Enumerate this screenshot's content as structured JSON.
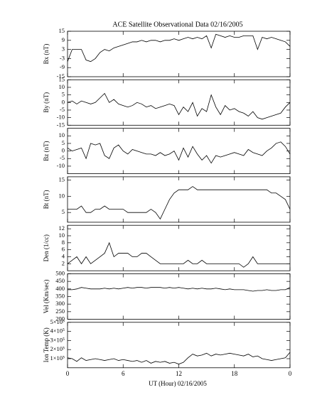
{
  "title": "ACE Satellite Observational Data   02/16/2005",
  "x_label": "UT (Hour)   02/16/2005",
  "chart_data": [
    {
      "type": "line",
      "y_label": "Bx (nT)",
      "xlim": [
        0,
        24
      ],
      "xticks": [
        0,
        6,
        12,
        18,
        {
          "value": 24,
          "label": "0"
        }
      ],
      "ylim": [
        -15,
        15
      ],
      "yticks": [
        -15,
        -9,
        -3,
        3,
        9,
        15
      ],
      "x": [
        0,
        0.5,
        1,
        1.5,
        2,
        2.5,
        3,
        3.5,
        4,
        4.5,
        5,
        5.5,
        6,
        6.5,
        7,
        7.5,
        8,
        8.5,
        9,
        9.5,
        10,
        10.5,
        11,
        11.5,
        12,
        12.5,
        13,
        13.5,
        14,
        14.5,
        15,
        15.5,
        16,
        16.5,
        17,
        17.5,
        18,
        18.5,
        19,
        19.5,
        20,
        20.5,
        21,
        21.5,
        22,
        22.5,
        23,
        23.5,
        24
      ],
      "values": [
        -5,
        3,
        3,
        3,
        -4,
        -5,
        -3,
        1,
        3,
        2,
        4,
        5,
        6,
        7,
        8,
        8,
        9,
        8,
        9,
        9,
        8,
        9,
        9,
        10,
        9,
        10,
        11,
        10,
        11,
        10,
        12,
        4,
        13,
        12,
        11,
        12,
        11,
        11,
        12,
        12,
        12,
        3,
        11,
        10,
        11,
        10,
        9,
        8,
        5
      ],
      "color": "#000000"
    },
    {
      "type": "line",
      "y_label": "By (nT)",
      "xlim": [
        0,
        24
      ],
      "xticks": [
        0,
        6,
        12,
        18,
        {
          "value": 24,
          "label": "0"
        }
      ],
      "ylim": [
        -15,
        15
      ],
      "yticks": [
        -15,
        -10,
        -5,
        0,
        5,
        10,
        15
      ],
      "x": [
        0,
        0.5,
        1,
        1.5,
        2,
        2.5,
        3,
        3.5,
        4,
        4.5,
        5,
        5.5,
        6,
        6.5,
        7,
        7.5,
        8,
        8.5,
        9,
        9.5,
        10,
        10.5,
        11,
        11.5,
        12,
        12.5,
        13,
        13.5,
        14,
        14.5,
        15,
        15.5,
        16,
        16.5,
        17,
        17.5,
        18,
        18.5,
        19,
        19.5,
        20,
        20.5,
        21,
        21.5,
        22,
        22.5,
        23,
        23.5,
        24
      ],
      "values": [
        0,
        1,
        -1,
        1,
        0,
        -1,
        0,
        3,
        6,
        0,
        2,
        -1,
        -2,
        -3,
        -2,
        0,
        -1,
        -3,
        -2,
        -4,
        -3,
        -2,
        -1,
        -2,
        -8,
        -3,
        -6,
        0,
        -9,
        -4,
        -6,
        5,
        -3,
        -8,
        -2,
        -5,
        -4,
        -6,
        -7,
        -9,
        -6,
        -10,
        -11,
        -10,
        -9,
        -8,
        -7,
        -3,
        0
      ],
      "color": "#000000"
    },
    {
      "type": "line",
      "y_label": "Bz (nT)",
      "xlim": [
        0,
        24
      ],
      "xticks": [
        0,
        6,
        12,
        18,
        {
          "value": 24,
          "label": "0"
        }
      ],
      "ylim": [
        -15,
        15
      ],
      "yticks": [
        -10,
        -5,
        0,
        5,
        10
      ],
      "x": [
        0,
        0.5,
        1,
        1.5,
        2,
        2.5,
        3,
        3.5,
        4,
        4.5,
        5,
        5.5,
        6,
        6.5,
        7,
        7.5,
        8,
        8.5,
        9,
        9.5,
        10,
        10.5,
        11,
        11.5,
        12,
        12.5,
        13,
        13.5,
        14,
        14.5,
        15,
        15.5,
        16,
        16.5,
        17,
        17.5,
        18,
        18.5,
        19,
        19.5,
        20,
        20.5,
        21,
        21.5,
        22,
        22.5,
        23,
        23.5,
        24
      ],
      "values": [
        2,
        0,
        1,
        2,
        -5,
        5,
        4,
        5,
        -3,
        -5,
        2,
        4,
        0,
        -2,
        1,
        0,
        -1,
        -2,
        -2,
        -3,
        -1,
        -3,
        -2,
        0,
        -6,
        2,
        -4,
        3,
        -2,
        -6,
        -3,
        -8,
        -3,
        -4,
        -3,
        -2,
        -1,
        -2,
        -3,
        1,
        -1,
        -2,
        -3,
        0,
        2,
        5,
        6,
        3,
        -2
      ],
      "color": "#000000"
    },
    {
      "type": "line",
      "y_label": "Bt (nT)",
      "xlim": [
        0,
        24
      ],
      "xticks": [
        0,
        6,
        12,
        18,
        {
          "value": 24,
          "label": "0"
        }
      ],
      "ylim": [
        2,
        16
      ],
      "yticks": [
        5,
        10,
        15
      ],
      "x": [
        0,
        0.5,
        1,
        1.5,
        2,
        2.5,
        3,
        3.5,
        4,
        4.5,
        5,
        5.5,
        6,
        6.5,
        7,
        7.5,
        8,
        8.5,
        9,
        9.5,
        10,
        10.5,
        11,
        11.5,
        12,
        12.5,
        13,
        13.5,
        14,
        14.5,
        15,
        15.5,
        16,
        16.5,
        17,
        17.5,
        18,
        18.5,
        19,
        19.5,
        20,
        20.5,
        21,
        21.5,
        22,
        22.5,
        23,
        23.5,
        24
      ],
      "values": [
        6,
        6,
        6,
        7,
        5,
        5,
        6,
        6,
        7,
        6,
        6,
        6,
        6,
        5,
        5,
        5,
        5,
        5,
        6,
        5,
        3,
        6,
        9,
        11,
        12,
        12,
        12,
        13,
        12,
        12,
        12,
        12,
        12,
        12,
        12,
        12,
        12,
        12,
        12,
        12,
        12,
        12,
        12,
        12,
        11,
        11,
        10,
        9,
        6
      ],
      "color": "#000000"
    },
    {
      "type": "line",
      "y_label": "Den (1/cc)",
      "xlim": [
        0,
        24
      ],
      "xticks": [
        0,
        6,
        12,
        18,
        {
          "value": 24,
          "label": "0"
        }
      ],
      "ylim": [
        0,
        13
      ],
      "yticks": [
        2,
        4,
        6,
        8,
        10,
        12
      ],
      "x": [
        0,
        0.5,
        1,
        1.5,
        2,
        2.5,
        3,
        3.5,
        4,
        4.5,
        5,
        5.5,
        6,
        6.5,
        7,
        7.5,
        8,
        8.5,
        9,
        9.5,
        10,
        10.5,
        11,
        11.5,
        12,
        12.5,
        13,
        13.5,
        14,
        14.5,
        15,
        15.5,
        16,
        16.5,
        17,
        17.5,
        18,
        18.5,
        19,
        19.5,
        20,
        20.5,
        21,
        21.5,
        22,
        22.5,
        23,
        23.5,
        24
      ],
      "values": [
        2,
        3,
        4,
        2,
        4,
        2,
        3,
        4,
        5,
        8,
        4,
        5,
        5,
        5,
        4,
        4,
        5,
        5,
        4,
        3,
        2,
        2,
        2,
        2,
        2,
        2,
        3,
        2,
        2,
        3,
        2,
        2,
        2,
        2,
        2,
        2,
        2,
        2,
        1,
        2,
        4,
        2,
        2,
        2,
        2,
        2,
        2,
        2,
        2
      ],
      "color": "#000000"
    },
    {
      "type": "line",
      "y_label": "Vel (Km/sec)",
      "xlim": [
        0,
        24
      ],
      "xticks": [
        0,
        6,
        12,
        18,
        {
          "value": 24,
          "label": "0"
        }
      ],
      "ylim": [
        200,
        500
      ],
      "yticks": [
        200,
        250,
        300,
        350,
        400,
        450,
        500
      ],
      "x": [
        0,
        0.5,
        1,
        1.5,
        2,
        2.5,
        3,
        3.5,
        4,
        4.5,
        5,
        5.5,
        6,
        6.5,
        7,
        7.5,
        8,
        8.5,
        9,
        9.5,
        10,
        10.5,
        11,
        11.5,
        12,
        12.5,
        13,
        13.5,
        14,
        14.5,
        15,
        15.5,
        16,
        16.5,
        17,
        17.5,
        18,
        18.5,
        19,
        19.5,
        20,
        20.5,
        21,
        21.5,
        22,
        22.5,
        23,
        23.5,
        24
      ],
      "values": [
        395,
        395,
        400,
        410,
        405,
        400,
        400,
        400,
        405,
        400,
        405,
        400,
        405,
        410,
        405,
        410,
        410,
        405,
        410,
        410,
        410,
        405,
        410,
        405,
        410,
        405,
        400,
        405,
        400,
        405,
        400,
        400,
        405,
        400,
        395,
        400,
        395,
        395,
        395,
        390,
        385,
        390,
        390,
        395,
        390,
        390,
        395,
        395,
        410
      ],
      "color": "#000000"
    },
    {
      "type": "line",
      "y_label": "Ion Temp (K)",
      "xlim": [
        0,
        24
      ],
      "xticks": [
        0,
        6,
        12,
        18,
        {
          "value": 24,
          "label": "0"
        }
      ],
      "ylim": [
        0,
        500000
      ],
      "yticks": [
        {
          "value": 100000,
          "label": "1×10⁵"
        },
        {
          "value": 200000,
          "label": "2×10⁵"
        },
        {
          "value": 300000,
          "label": "3×10⁵"
        },
        {
          "value": 400000,
          "label": "4×10⁵"
        },
        {
          "value": 500000,
          "label": "5×10⁵"
        }
      ],
      "x": [
        0,
        0.5,
        1,
        1.5,
        2,
        2.5,
        3,
        3.5,
        4,
        4.5,
        5,
        5.5,
        6,
        6.5,
        7,
        7.5,
        8,
        8.5,
        9,
        9.5,
        10,
        10.5,
        11,
        11.5,
        12,
        12.5,
        13,
        13.5,
        14,
        14.5,
        15,
        15.5,
        16,
        16.5,
        17,
        17.5,
        18,
        18.5,
        19,
        19.5,
        20,
        20.5,
        21,
        21.5,
        22,
        22.5,
        23,
        23.5,
        24
      ],
      "values": [
        110000,
        100000,
        70000,
        110000,
        80000,
        90000,
        100000,
        90000,
        80000,
        90000,
        100000,
        80000,
        90000,
        80000,
        70000,
        80000,
        60000,
        80000,
        50000,
        70000,
        60000,
        70000,
        50000,
        60000,
        40000,
        60000,
        110000,
        150000,
        130000,
        140000,
        160000,
        130000,
        150000,
        140000,
        150000,
        160000,
        150000,
        140000,
        130000,
        150000,
        120000,
        130000,
        100000,
        90000,
        80000,
        90000,
        100000,
        110000,
        170000
      ],
      "color": "#000000"
    }
  ]
}
